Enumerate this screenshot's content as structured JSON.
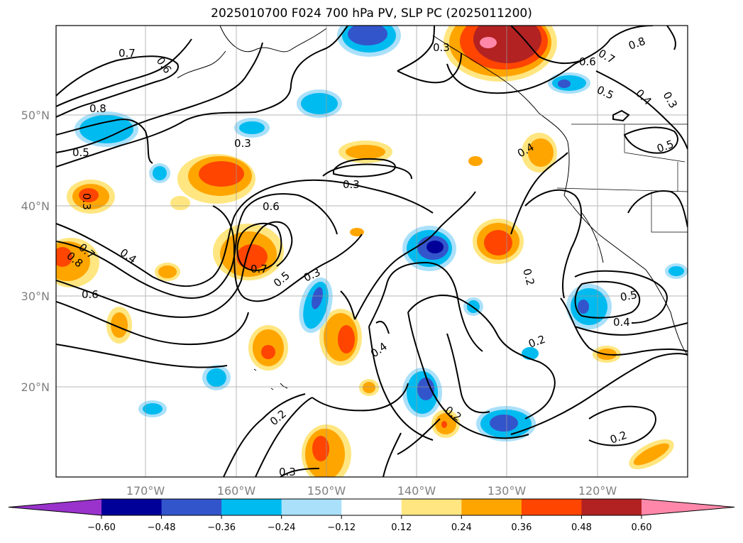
{
  "title": "2025010700 F024 700 hPa PV, SLP PC (2025011200)",
  "latitude_labels": [
    "50°N",
    "40°N",
    "30°N",
    "20°N"
  ],
  "longitude_labels": [
    "170°W",
    "160°W",
    "150°W",
    "140°W",
    "130°W",
    "120°W"
  ],
  "colorbar": {
    "colors": [
      "#9933cc",
      "#000099",
      "#3355cc",
      "#00bbf0",
      "#aae0fa",
      "#ffffff",
      "#ffe680",
      "#ffa500",
      "#ff4500",
      "#b22222",
      "#ff88aa"
    ],
    "tick_labels": [
      "−0.60",
      "−0.48",
      "−0.36",
      "−0.24",
      "−0.12",
      "0.12",
      "0.24",
      "0.36",
      "0.48",
      "0.60"
    ]
  },
  "contour_labels": [
    "0.7",
    "0.6",
    "0.8",
    "0.5",
    "0.3",
    "0.3",
    "0.3",
    "0.6",
    "0.7",
    "0.4",
    "0.8",
    "0.6",
    "0.7",
    "0.5",
    "0.3",
    "0.3",
    "0.6",
    "0.7",
    "0.8",
    "0.5",
    "0.4",
    "0.3",
    "0.4",
    "0.5",
    "0.2",
    "0.2",
    "0.4",
    "0.2",
    "0.5",
    "0.4",
    "0.2",
    "0.2",
    "0.3"
  ]
}
